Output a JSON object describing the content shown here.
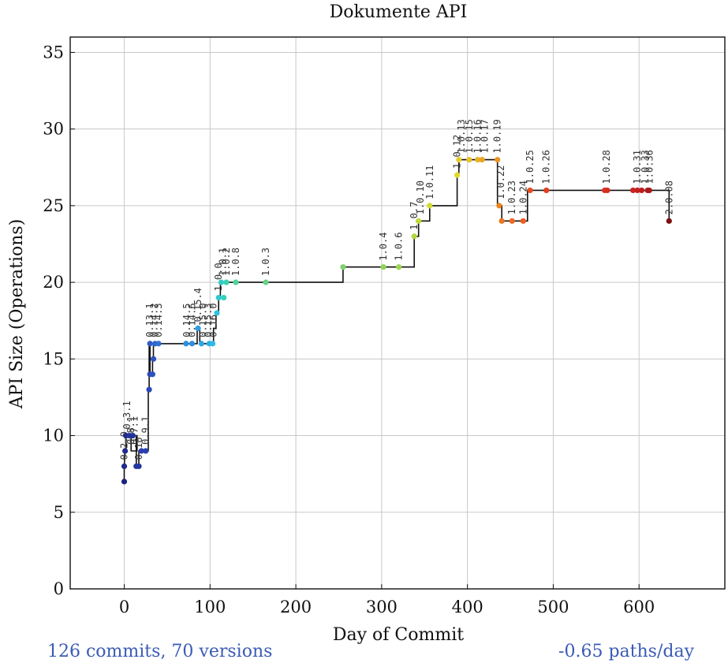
{
  "chart_data": {
    "type": "line",
    "title": "Dokumente API",
    "xlabel": "Day of Commit",
    "ylabel": "API Size (Operations)",
    "xlim": [
      -63,
      700
    ],
    "ylim": [
      0,
      36
    ],
    "xticks": [
      0,
      100,
      200,
      300,
      400,
      500,
      600
    ],
    "yticks": [
      0,
      5,
      10,
      15,
      20,
      25,
      30,
      35
    ],
    "grid": true,
    "step_line": [
      [
        0,
        7
      ],
      [
        0,
        8
      ],
      [
        1,
        9
      ],
      [
        2,
        9
      ],
      [
        2,
        10
      ],
      [
        8,
        10
      ],
      [
        8,
        9
      ],
      [
        15,
        9
      ],
      [
        15,
        10
      ],
      [
        14,
        10
      ],
      [
        14,
        8
      ],
      [
        17,
        8
      ],
      [
        17,
        9
      ],
      [
        28,
        9
      ],
      [
        28,
        13
      ],
      [
        29,
        13
      ],
      [
        29,
        16
      ],
      [
        30,
        16
      ],
      [
        30,
        14
      ],
      [
        33,
        14
      ],
      [
        33,
        15
      ],
      [
        34,
        15
      ],
      [
        34,
        16
      ],
      [
        70,
        16
      ],
      [
        70,
        16
      ],
      [
        85,
        16
      ],
      [
        85,
        17
      ],
      [
        88,
        17
      ],
      [
        88,
        16
      ],
      [
        100,
        16
      ],
      [
        100,
        16
      ],
      [
        104,
        16
      ],
      [
        104,
        17
      ],
      [
        107,
        17
      ],
      [
        107,
        18
      ],
      [
        110,
        18
      ],
      [
        110,
        19
      ],
      [
        112,
        19
      ],
      [
        112,
        20
      ],
      [
        118,
        20
      ],
      [
        118,
        20
      ],
      [
        130,
        20
      ],
      [
        165,
        20
      ],
      [
        255,
        20
      ],
      [
        255,
        21
      ],
      [
        302,
        21
      ],
      [
        320,
        21
      ],
      [
        338,
        21
      ],
      [
        338,
        23
      ],
      [
        343,
        23
      ],
      [
        343,
        24
      ],
      [
        356,
        24
      ],
      [
        356,
        25
      ],
      [
        388,
        25
      ],
      [
        388,
        27
      ],
      [
        390,
        27
      ],
      [
        390,
        28
      ],
      [
        402,
        28
      ],
      [
        402,
        28
      ],
      [
        435,
        28
      ],
      [
        435,
        25
      ],
      [
        440,
        25
      ],
      [
        440,
        24
      ],
      [
        470,
        24
      ],
      [
        470,
        26
      ],
      [
        492,
        26
      ],
      [
        560,
        26
      ],
      [
        598,
        26
      ],
      [
        612,
        26
      ],
      [
        635,
        26
      ],
      [
        635,
        24
      ]
    ],
    "points": [
      {
        "x": 0,
        "y": 7,
        "color": "#1a237e"
      },
      {
        "x": 0,
        "y": 8,
        "color": "#1f2a8a"
      },
      {
        "x": 1,
        "y": 9,
        "color": "#1f2a8a"
      },
      {
        "x": 2,
        "y": 10,
        "color": "#1f2a8a"
      },
      {
        "x": 6,
        "y": 10,
        "color": "#223399"
      },
      {
        "x": 10,
        "y": 10,
        "color": "#223399"
      },
      {
        "x": 14,
        "y": 8,
        "color": "#2536a0"
      },
      {
        "x": 17,
        "y": 8,
        "color": "#2536a0"
      },
      {
        "x": 20,
        "y": 9,
        "color": "#2a3fae"
      },
      {
        "x": 25,
        "y": 9,
        "color": "#2a3fae"
      },
      {
        "x": 29,
        "y": 13,
        "color": "#2d48b8"
      },
      {
        "x": 30,
        "y": 14,
        "color": "#2d48b8"
      },
      {
        "x": 33,
        "y": 14,
        "color": "#2f52bf"
      },
      {
        "x": 34,
        "y": 15,
        "color": "#2f52bf"
      },
      {
        "x": 30,
        "y": 16,
        "color": "#2f5cc6"
      },
      {
        "x": 36,
        "y": 16,
        "color": "#3066cc"
      },
      {
        "x": 40,
        "y": 16,
        "color": "#3070d2"
      },
      {
        "x": 72,
        "y": 16,
        "color": "#2f8fdc"
      },
      {
        "x": 79,
        "y": 16,
        "color": "#2f8fdc"
      },
      {
        "x": 86,
        "y": 17,
        "color": "#2f9ee0"
      },
      {
        "x": 90,
        "y": 16,
        "color": "#2fa6e2"
      },
      {
        "x": 99,
        "y": 16,
        "color": "#2fb0e4"
      },
      {
        "x": 103,
        "y": 16,
        "color": "#2fbae6"
      },
      {
        "x": 108,
        "y": 18,
        "color": "#2fc2e2"
      },
      {
        "x": 110,
        "y": 19,
        "color": "#32c8d6"
      },
      {
        "x": 113,
        "y": 20,
        "color": "#35ccc8"
      },
      {
        "x": 116,
        "y": 19,
        "color": "#38cfbb"
      },
      {
        "x": 119,
        "y": 20,
        "color": "#3dd1ad"
      },
      {
        "x": 130,
        "y": 20,
        "color": "#4fd49a"
      },
      {
        "x": 165,
        "y": 20,
        "color": "#66d385"
      },
      {
        "x": 255,
        "y": 21,
        "color": "#7fd26c"
      },
      {
        "x": 302,
        "y": 21,
        "color": "#8fd35c"
      },
      {
        "x": 320,
        "y": 21,
        "color": "#9dd44f"
      },
      {
        "x": 338,
        "y": 23,
        "color": "#b1d642"
      },
      {
        "x": 343,
        "y": 24,
        "color": "#c2d93a"
      },
      {
        "x": 356,
        "y": 25,
        "color": "#d1dc32"
      },
      {
        "x": 388,
        "y": 27,
        "color": "#e0d92c"
      },
      {
        "x": 390,
        "y": 28,
        "color": "#e6cf28"
      },
      {
        "x": 402,
        "y": 28,
        "color": "#e8c226"
      },
      {
        "x": 412,
        "y": 28,
        "color": "#e9b424"
      },
      {
        "x": 417,
        "y": 28,
        "color": "#eaa522"
      },
      {
        "x": 435,
        "y": 28,
        "color": "#ec9421"
      },
      {
        "x": 437,
        "y": 25,
        "color": "#ed8420"
      },
      {
        "x": 440,
        "y": 24,
        "color": "#ee7420"
      },
      {
        "x": 452,
        "y": 24,
        "color": "#ee6820"
      },
      {
        "x": 465,
        "y": 24,
        "color": "#ee5c20"
      },
      {
        "x": 473,
        "y": 26,
        "color": "#ea4a20"
      },
      {
        "x": 492,
        "y": 26,
        "color": "#e53f20"
      },
      {
        "x": 560,
        "y": 26,
        "color": "#d93220"
      },
      {
        "x": 563,
        "y": 26,
        "color": "#d62e20"
      },
      {
        "x": 593,
        "y": 26,
        "color": "#c92520"
      },
      {
        "x": 598,
        "y": 26,
        "color": "#c2221f"
      },
      {
        "x": 603,
        "y": 26,
        "color": "#bb1f1e"
      },
      {
        "x": 610,
        "y": 26,
        "color": "#b01c1c"
      },
      {
        "x": 612,
        "y": 26,
        "color": "#a81a1a"
      },
      {
        "x": 635,
        "y": 24,
        "color": "#7a1010"
      }
    ],
    "version_labels": [
      {
        "x": 0,
        "y": 8,
        "text": "0.2.0"
      },
      {
        "x": 3,
        "y": 10,
        "text": "0.3.1"
      },
      {
        "x": 8,
        "y": 9,
        "text": "0.8.1"
      },
      {
        "x": 12,
        "y": 9,
        "text": "0.7.1"
      },
      {
        "x": 17,
        "y": 8,
        "text": "0.10"
      },
      {
        "x": 25,
        "y": 9,
        "text": "0.9.1"
      },
      {
        "x": 30,
        "y": 16,
        "text": "0.13.1"
      },
      {
        "x": 35,
        "y": 16,
        "text": "0.14.2"
      },
      {
        "x": 40,
        "y": 16,
        "text": "0.14.3"
      },
      {
        "x": 73,
        "y": 16,
        "text": "0.14.5"
      },
      {
        "x": 79,
        "y": 16,
        "text": "0.14.6"
      },
      {
        "x": 86,
        "y": 17,
        "text": "0.15.4"
      },
      {
        "x": 92,
        "y": 16,
        "text": "0.15.0"
      },
      {
        "x": 98,
        "y": 16,
        "text": "0.15.3"
      },
      {
        "x": 104,
        "y": 16,
        "text": "0.16.0"
      },
      {
        "x": 110,
        "y": 19,
        "text": "1.0.0"
      },
      {
        "x": 115,
        "y": 20,
        "text": "1.0.1"
      },
      {
        "x": 119,
        "y": 20,
        "text": "1.0.2"
      },
      {
        "x": 130,
        "y": 20,
        "text": "1.0.8"
      },
      {
        "x": 165,
        "y": 20,
        "text": "1.0.3"
      },
      {
        "x": 302,
        "y": 21,
        "text": "1.0.4"
      },
      {
        "x": 320,
        "y": 21,
        "text": "1.0.6"
      },
      {
        "x": 338,
        "y": 23,
        "text": "1.0.7"
      },
      {
        "x": 345,
        "y": 24,
        "text": "1.0.10"
      },
      {
        "x": 356,
        "y": 25,
        "text": "1.0.11"
      },
      {
        "x": 388,
        "y": 27,
        "text": "1.0.12"
      },
      {
        "x": 393,
        "y": 28,
        "text": "1.0.13"
      },
      {
        "x": 402,
        "y": 28,
        "text": "1.0.15"
      },
      {
        "x": 412,
        "y": 28,
        "text": "1.0.16"
      },
      {
        "x": 420,
        "y": 28,
        "text": "1.0.17"
      },
      {
        "x": 435,
        "y": 28,
        "text": "1.0.19"
      },
      {
        "x": 439,
        "y": 25,
        "text": "1.0.22"
      },
      {
        "x": 452,
        "y": 24,
        "text": "1.0.23"
      },
      {
        "x": 465,
        "y": 24,
        "text": "1.0.24"
      },
      {
        "x": 473,
        "y": 26,
        "text": "1.0.25"
      },
      {
        "x": 492,
        "y": 26,
        "text": "1.0.26"
      },
      {
        "x": 562,
        "y": 26,
        "text": "1.0.28"
      },
      {
        "x": 598,
        "y": 26,
        "text": "1.0.31"
      },
      {
        "x": 607,
        "y": 26,
        "text": "1.0.33"
      },
      {
        "x": 612,
        "y": 26,
        "text": "1.0.36"
      },
      {
        "x": 635,
        "y": 24,
        "text": "2.0.08"
      }
    ]
  },
  "footer": {
    "left": "126 commits, 70 versions",
    "right": "-0.65 paths/day",
    "color": "#3b5bb5"
  }
}
